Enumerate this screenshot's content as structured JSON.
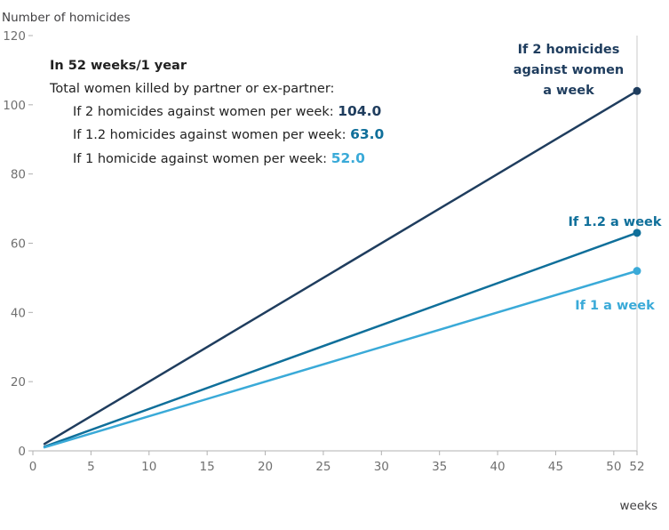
{
  "chart_data": {
    "type": "line",
    "xlabel": "weeks",
    "ylabel": "Number of homicides",
    "xlim": [
      0,
      52
    ],
    "ylim": [
      0,
      120
    ],
    "x_ticks": [
      "0",
      "5",
      "10",
      "15",
      "20",
      "25",
      "30",
      "35",
      "40",
      "45",
      "50",
      "52"
    ],
    "y_ticks": [
      "0",
      "20",
      "40",
      "60",
      "80",
      "100",
      "120"
    ],
    "x_tick_values": [
      0,
      5,
      10,
      15,
      20,
      25,
      30,
      35,
      40,
      45,
      50,
      52
    ],
    "y_tick_values": [
      0,
      20,
      40,
      60,
      80,
      100,
      120
    ],
    "gridlines": false,
    "series": [
      {
        "label": "If 2 homicides against women a week",
        "label_lines": [
          "If 2 homicides",
          "against women",
          "a week"
        ],
        "color": "#1f3d5e",
        "x": [
          1,
          52
        ],
        "y": [
          2,
          104
        ]
      },
      {
        "label": "If 1.2 a week",
        "label_lines": [
          "If 1.2 a week"
        ],
        "color": "#0f6f9a",
        "x": [
          1,
          52
        ],
        "y": [
          1.2,
          63
        ]
      },
      {
        "label": "If 1 a week",
        "label_lines": [
          "If 1 a week"
        ],
        "color": "#3aaad8",
        "x": [
          1,
          52
        ],
        "y": [
          1,
          52
        ]
      }
    ],
    "annotation": {
      "title": "In 52 weeks/1 year",
      "subtitle": "Total women killed by partner or ex-partner:",
      "lines": [
        {
          "text": "If 2 homicides against women per week: ",
          "value": "104.0",
          "color": "#1f3d5e"
        },
        {
          "text": "If 1.2 homicides against women per week: ",
          "value": "63.0",
          "color": "#0f6f9a"
        },
        {
          "text": "If 1 homicide against women per week: ",
          "value": "52.0",
          "color": "#3aaad8"
        }
      ]
    }
  }
}
